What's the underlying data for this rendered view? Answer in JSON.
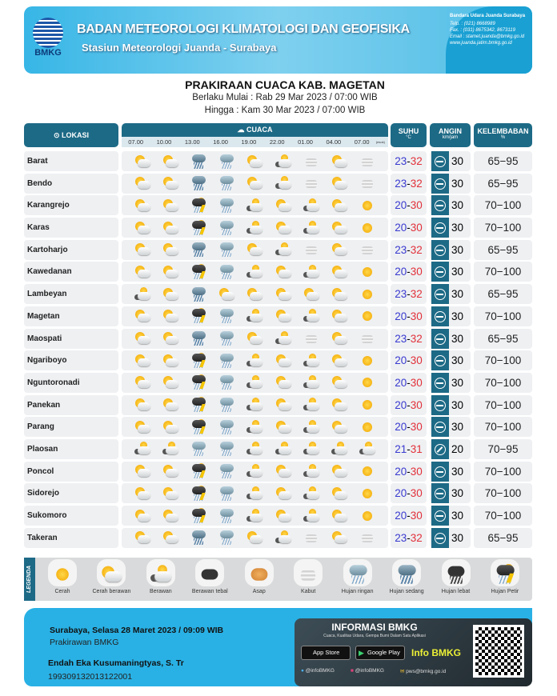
{
  "header": {
    "org": "BADAN METEOROLOGI KLIMATOLOGI DAN GEOFISIKA",
    "station": "Stasiun Meteorologi Juanda - Surabaya",
    "logo_text": "BMKG",
    "contact": {
      "heading": "Bandara Udara Juanda Surabaya",
      "telp": "Telp. : (021) 8668989",
      "fax": "Fax. : (031) 8675342, 8673119",
      "email": "Email : stamet.juanda@bmkg.go.id",
      "web": "www.juanda.jatim.bmkg.go.id"
    }
  },
  "title": {
    "main": "PRAKIRAAN CUACA KAB. MAGETAN",
    "from": "Berlaku Mulai : Rab 29 Mar 2023 / 07:00 WIB",
    "to": "Hingga : Kam 30 Mar 2023 / 07:00 WIB"
  },
  "columns": {
    "location": "Lokasi",
    "weather": "Cuaca",
    "temp": "Suhu",
    "temp_unit": "°C",
    "wind": "Angin",
    "wind_unit": "km/jam",
    "humidity": "Kelembaban",
    "humidity_unit": "%",
    "times": [
      "07.00",
      "10.00",
      "13.00",
      "16.00",
      "19.00",
      "22.00",
      "01.00",
      "04.00",
      "07.00"
    ],
    "next_day_mark": "(esok)"
  },
  "colors": {
    "header": "#1d6a86",
    "temp_min": "#3a3ad0",
    "temp_max": "#e2303a",
    "banner": "#37b6e6"
  },
  "rows": [
    {
      "name": "Barat",
      "wx": [
        "CB",
        "CB",
        "HS",
        "HR",
        "CB",
        "B",
        "K",
        "CB",
        "K"
      ],
      "tmin": "23",
      "tmax": "32",
      "wind": "30",
      "wind_dir": "E",
      "hum": "65−95"
    },
    {
      "name": "Bendo",
      "wx": [
        "CB",
        "CB",
        "HS",
        "HR",
        "CB",
        "B",
        "K",
        "CB",
        "K"
      ],
      "tmin": "23",
      "tmax": "32",
      "wind": "30",
      "wind_dir": "E",
      "hum": "65−95"
    },
    {
      "name": "Karangrejo",
      "wx": [
        "CB",
        "CB",
        "HP",
        "HR",
        "B",
        "CB",
        "B",
        "CB",
        "C"
      ],
      "tmin": "20",
      "tmax": "30",
      "wind": "30",
      "wind_dir": "E",
      "hum": "70−100"
    },
    {
      "name": "Karas",
      "wx": [
        "CB",
        "CB",
        "HP",
        "HR",
        "B",
        "CB",
        "B",
        "CB",
        "C"
      ],
      "tmin": "20",
      "tmax": "30",
      "wind": "30",
      "wind_dir": "E",
      "hum": "70−100"
    },
    {
      "name": "Kartoharjo",
      "wx": [
        "CB",
        "CB",
        "HS",
        "HR",
        "CB",
        "B",
        "K",
        "CB",
        "K"
      ],
      "tmin": "23",
      "tmax": "32",
      "wind": "30",
      "wind_dir": "E",
      "hum": "65−95"
    },
    {
      "name": "Kawedanan",
      "wx": [
        "CB",
        "CB",
        "HP",
        "HR",
        "B",
        "CB",
        "B",
        "CB",
        "C"
      ],
      "tmin": "20",
      "tmax": "30",
      "wind": "30",
      "wind_dir": "E",
      "hum": "70−100"
    },
    {
      "name": "Lambeyan",
      "wx": [
        "B",
        "CB",
        "HS",
        "CB",
        "CB",
        "CB",
        "CB",
        "CB",
        "C"
      ],
      "tmin": "23",
      "tmax": "32",
      "wind": "30",
      "wind_dir": "E",
      "hum": "65−95"
    },
    {
      "name": "Magetan",
      "wx": [
        "CB",
        "CB",
        "HP",
        "HR",
        "B",
        "CB",
        "B",
        "CB",
        "C"
      ],
      "tmin": "20",
      "tmax": "30",
      "wind": "30",
      "wind_dir": "E",
      "hum": "70−100"
    },
    {
      "name": "Maospati",
      "wx": [
        "CB",
        "CB",
        "HS",
        "HR",
        "CB",
        "B",
        "K",
        "CB",
        "K"
      ],
      "tmin": "23",
      "tmax": "32",
      "wind": "30",
      "wind_dir": "E",
      "hum": "65−95"
    },
    {
      "name": "Ngariboyo",
      "wx": [
        "CB",
        "CB",
        "HP",
        "HR",
        "B",
        "CB",
        "B",
        "CB",
        "C"
      ],
      "tmin": "20",
      "tmax": "30",
      "wind": "30",
      "wind_dir": "E",
      "hum": "70−100"
    },
    {
      "name": "Nguntoronadi",
      "wx": [
        "CB",
        "CB",
        "HP",
        "HR",
        "B",
        "CB",
        "B",
        "CB",
        "C"
      ],
      "tmin": "20",
      "tmax": "30",
      "wind": "30",
      "wind_dir": "E",
      "hum": "70−100"
    },
    {
      "name": "Panekan",
      "wx": [
        "CB",
        "CB",
        "HP",
        "HR",
        "B",
        "CB",
        "B",
        "CB",
        "C"
      ],
      "tmin": "20",
      "tmax": "30",
      "wind": "30",
      "wind_dir": "E",
      "hum": "70−100"
    },
    {
      "name": "Parang",
      "wx": [
        "CB",
        "CB",
        "HP",
        "HR",
        "B",
        "CB",
        "B",
        "CB",
        "C"
      ],
      "tmin": "20",
      "tmax": "30",
      "wind": "30",
      "wind_dir": "E",
      "hum": "70−100"
    },
    {
      "name": "Plaosan",
      "wx": [
        "B",
        "B",
        "HR",
        "HR",
        "B",
        "B",
        "B",
        "B",
        "B"
      ],
      "tmin": "21",
      "tmax": "31",
      "wind": "20",
      "wind_dir": "NE",
      "hum": "70−95"
    },
    {
      "name": "Poncol",
      "wx": [
        "CB",
        "CB",
        "HP",
        "HR",
        "B",
        "CB",
        "B",
        "CB",
        "C"
      ],
      "tmin": "20",
      "tmax": "30",
      "wind": "30",
      "wind_dir": "E",
      "hum": "70−100"
    },
    {
      "name": "Sidorejo",
      "wx": [
        "CB",
        "CB",
        "HP",
        "HR",
        "B",
        "CB",
        "B",
        "CB",
        "C"
      ],
      "tmin": "20",
      "tmax": "30",
      "wind": "30",
      "wind_dir": "E",
      "hum": "70−100"
    },
    {
      "name": "Sukomoro",
      "wx": [
        "CB",
        "CB",
        "HP",
        "HR",
        "B",
        "CB",
        "B",
        "CB",
        "C"
      ],
      "tmin": "20",
      "tmax": "30",
      "wind": "30",
      "wind_dir": "E",
      "hum": "70−100"
    },
    {
      "name": "Takeran",
      "wx": [
        "CB",
        "CB",
        "HS",
        "HR",
        "CB",
        "B",
        "K",
        "CB",
        "K"
      ],
      "tmin": "23",
      "tmax": "32",
      "wind": "30",
      "wind_dir": "E",
      "hum": "65−95"
    }
  ],
  "legend": {
    "title": "LEGENDA",
    "items": [
      {
        "code": "C",
        "label": "Cerah"
      },
      {
        "code": "CB",
        "label": "Cerah berawan"
      },
      {
        "code": "B",
        "label": "Berawan"
      },
      {
        "code": "BT",
        "label": "Berawan tebal"
      },
      {
        "code": "A",
        "label": "Asap"
      },
      {
        "code": "K",
        "label": "Kabut"
      },
      {
        "code": "HR",
        "label": "Hujan ringan"
      },
      {
        "code": "HS",
        "label": "Hujan sedang"
      },
      {
        "code": "HL",
        "label": "Hujan lebat"
      },
      {
        "code": "HP",
        "label": "Hujan Petir"
      }
    ]
  },
  "footer": {
    "place_date": "Surabaya, Selasa 28 Maret 2023 / 09:09 WIB",
    "role": "Prakirawan BMKG",
    "forecaster": "Endah Eka Kusumaningtyas, S. Tr",
    "nip": "199309132013122001",
    "info": {
      "title": "INFORMASI BMKG",
      "subtitle": "Cuaca, Kualitas Udara, Gempa Bumi Dalam Satu Aplikasi",
      "app_store": "App Store",
      "google_play": "Google Play",
      "app_name": "Info BMKG",
      "twitter": "@infoBMKG",
      "instagram": "@infoBMKG",
      "email": "pws@bmkg.go.id"
    }
  }
}
